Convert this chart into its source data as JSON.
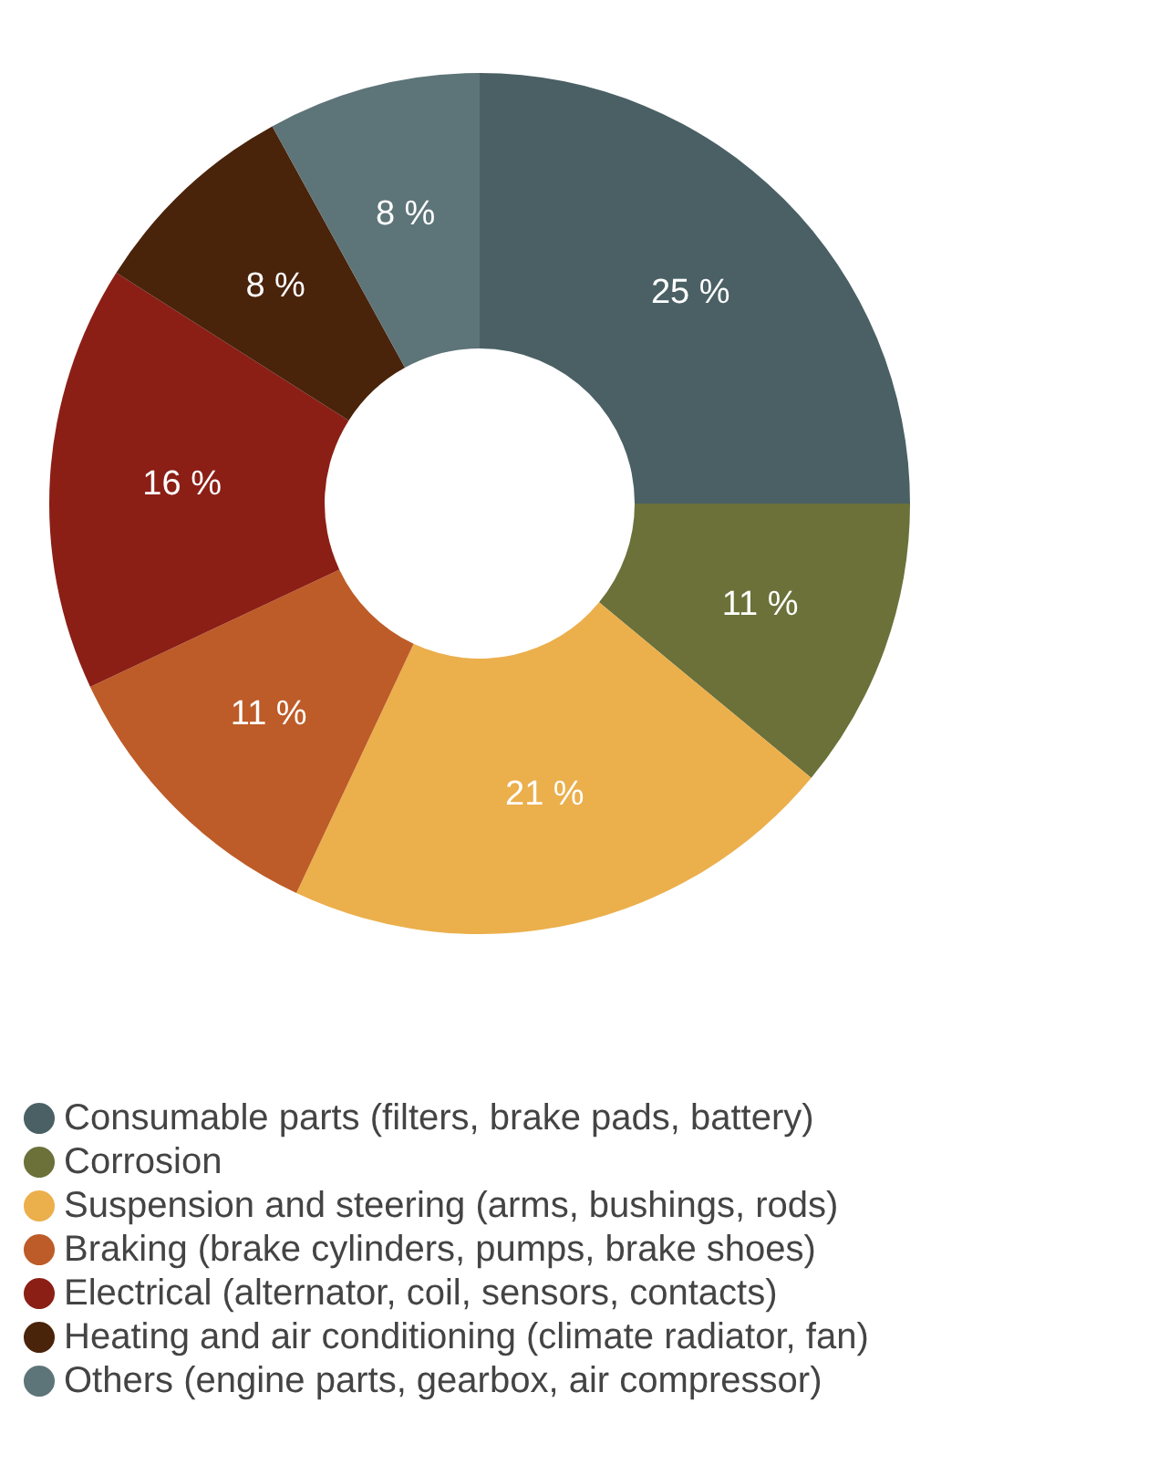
{
  "chart_data": {
    "type": "donut",
    "categories": [
      "Consumable parts (filters, brake pads, battery)",
      "Corrosion",
      "Suspension and steering (arms, bushings, rods)",
      "Braking (brake cylinders, pumps, brake shoes)",
      "Electrical (alternator, coil, sensors, contacts)",
      "Heating and air conditioning (climate radiator, fan)",
      "Others (engine parts, gearbox, air compressor)"
    ],
    "values": [
      25,
      11,
      21,
      11,
      16,
      8,
      8
    ],
    "value_labels": [
      "25 %",
      "11 %",
      "21 %",
      "11 %",
      "16 %",
      "8 %",
      "8 %"
    ],
    "colors": [
      "#4a6064",
      "#6b7139",
      "#ebaf4c",
      "#bd5c28",
      "#8b1f16",
      "#4a230b",
      "#5d7478"
    ],
    "legend": "bottom"
  }
}
